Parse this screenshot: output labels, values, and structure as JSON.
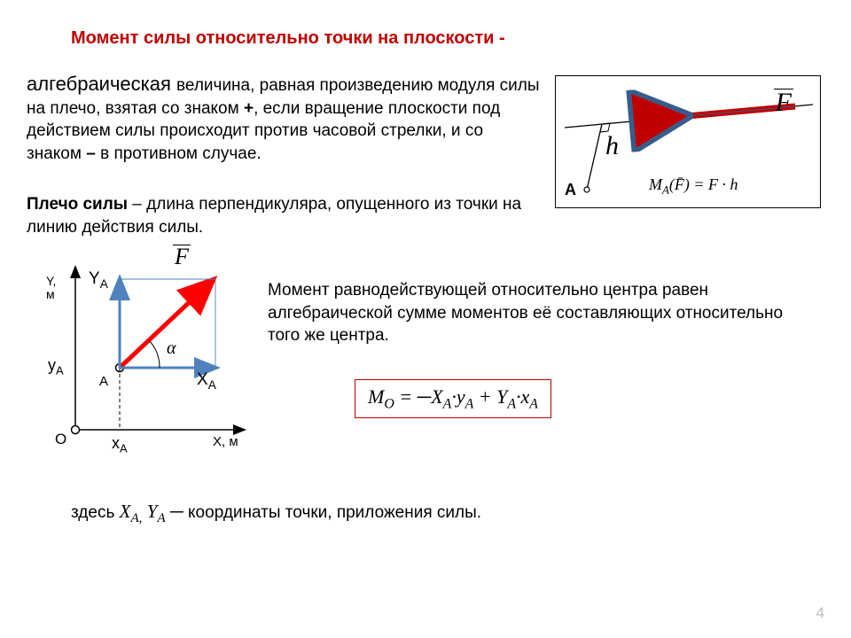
{
  "title": {
    "text": "Момент силы относительно точки на плоскости -",
    "color": "#c00000",
    "fontsize": 20
  },
  "para1": {
    "prefix": "алгебраическая ",
    "body": "величина, равная   произведению модуля силы на плечо, взятая со знаком ",
    "plus": "+",
    "body2": ", если вращение плоскости под действием силы происходит против часовой стрелки, и со знаком ",
    "minus": "–",
    "body3": " в противном случае."
  },
  "para2": {
    "lead": "Плечо силы",
    "rest": " – длина перпендикуляра, опущенного из точки  на линию действия силы."
  },
  "para3": "Момент равнодействующей относительно центра равен алгебраической сумме моментов её составляющих относительно того же центра.",
  "formula": {
    "html": "M<sub>O</sub> = ─X<sub>A</sub>·y<sub>A</sub> + Y<sub>A</sub>·x<sub>A</sub>",
    "border_color": "#c00000"
  },
  "note": {
    "prefix": "здесь ",
    "coords": "X<sub>A,</sub> Y<sub>A</sub> ─ ",
    "rest": "координаты точки, приложения силы."
  },
  "pagenum": "4",
  "fig1": {
    "label_h": "h",
    "label_F": "F",
    "label_A": "A",
    "formula": "M<sub>A</sub>(F̄) = F · h",
    "line_color": "#000000",
    "arrow_color": "#c00000",
    "arrow_outline": "#385d8a"
  },
  "fig2": {
    "ylabel": "Y, м",
    "xlabel": "X,  м",
    "YA": "Y<sub>A</sub>",
    "XA": "X<sub>A</sub>",
    "yA": "y<sub>A</sub>",
    "xA": "x<sub>A</sub>",
    "O": "O",
    "A": "A",
    "F": "F",
    "alpha": "α",
    "axis_color": "#000000",
    "force_color": "#ff0000",
    "component_color": "#4f81bd",
    "dashed_color": "#000000"
  }
}
